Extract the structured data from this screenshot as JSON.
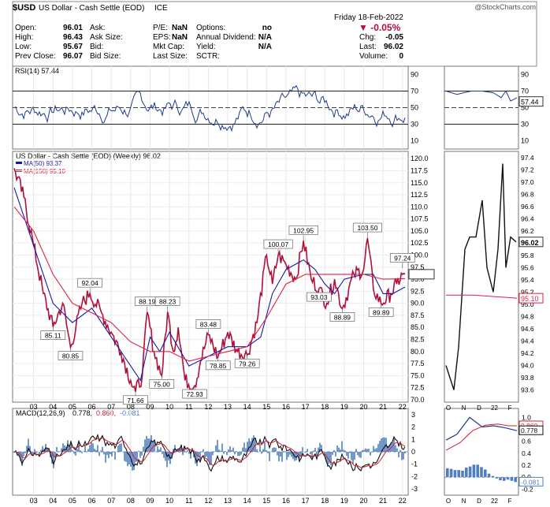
{
  "header": {
    "symbol": "$USD",
    "name": "US Dollar - Cash Settle (EOD)",
    "exchange": "ICE",
    "watermark": "@StockCharts.com",
    "date": "Friday  18-Feb-2022",
    "change_pct": "▼ -0.05%",
    "quote": [
      {
        "label": "Open:",
        "value": "96.01"
      },
      {
        "label": "High:",
        "value": "96.43"
      },
      {
        "label": "Low:",
        "value": "95.67"
      },
      {
        "label": "Prev Close:",
        "value": "96.07"
      }
    ],
    "quote2": [
      {
        "label": "Ask:",
        "value": ""
      },
      {
        "label": "Ask Size:",
        "value": ""
      },
      {
        "label": "Bid:",
        "value": ""
      },
      {
        "label": "Bid Size:",
        "value": ""
      }
    ],
    "fund": [
      {
        "label": "P/E:",
        "value": "NaN"
      },
      {
        "label": "EPS:",
        "value": "NaN"
      },
      {
        "label": "Mkt Cap:",
        "value": ""
      },
      {
        "label": "Last Size:",
        "value": ""
      }
    ],
    "div": [
      {
        "label": "Options:",
        "value": "no"
      },
      {
        "label": "Annual Dividend:",
        "value": "N/A"
      },
      {
        "label": "Yield:",
        "value": "N/A"
      },
      {
        "label": "SCTR:",
        "value": ""
      }
    ],
    "right": [
      {
        "label": "Chg:",
        "value": "-0.05"
      },
      {
        "label": "Last:",
        "value": "96.02"
      },
      {
        "label": "Volume:",
        "value": "0"
      }
    ]
  },
  "colors": {
    "price": "#b0103a",
    "ma50": "#1a1aa0",
    "ma150": "#e02040",
    "rsi": "#1f3c88",
    "macd_hist": "#4f7fc0",
    "signal": "#d02030",
    "header_red": "#b0103a"
  },
  "chart_data": [
    {
      "type": "line",
      "panel": "rsi",
      "title": "RSI(14) 57.44",
      "ylim": [
        0,
        100
      ],
      "y_ticks": [
        "90",
        "70",
        "50",
        "30",
        "10"
      ],
      "levels": [
        70,
        30
      ],
      "x_ticks": [
        "03",
        "04",
        "05",
        "06",
        "07",
        "08",
        "09",
        "10",
        "11",
        "12",
        "13",
        "14",
        "15",
        "16",
        "17",
        "18",
        "19",
        "20",
        "21",
        "22"
      ],
      "last_value": "57.44"
    },
    {
      "type": "line",
      "panel": "price",
      "title": "US Dollar - Cash Settle (EOD) (Weekly) 96.02",
      "ylim": [
        69.5,
        121.5
      ],
      "y_ticks": [
        "120.0",
        "117.5",
        "115.0",
        "112.5",
        "110.0",
        "107.5",
        "105.0",
        "102.5",
        "100.0",
        "97.5",
        "95.0",
        "92.5",
        "90.0",
        "87.5",
        "85.0",
        "82.5",
        "80.0",
        "77.5",
        "75.0",
        "72.5",
        "70.0"
      ],
      "x_ticks": [
        "03",
        "04",
        "05",
        "06",
        "07",
        "08",
        "09",
        "10",
        "11",
        "12",
        "13",
        "14",
        "15",
        "16",
        "17",
        "18",
        "19",
        "20",
        "21",
        "22"
      ],
      "series": [
        {
          "name": "US Dollar - Cash Settle (EOD) (Weekly) 96.02",
          "x": [
            2002.0,
            2002.5,
            2003.0,
            2003.5,
            2004.0,
            2004.5,
            2004.9,
            2005.5,
            2005.9,
            2006.5,
            2007.0,
            2007.5,
            2008.0,
            2008.25,
            2008.6,
            2008.85,
            2009.2,
            2009.6,
            2009.9,
            2010.2,
            2010.45,
            2010.8,
            2011.3,
            2011.6,
            2012.0,
            2012.5,
            2013.0,
            2013.5,
            2014.0,
            2014.5,
            2015.0,
            2015.3,
            2015.6,
            2016.0,
            2016.5,
            2016.9,
            2017.3,
            2017.7,
            2018.1,
            2018.5,
            2018.9,
            2019.5,
            2020.0,
            2020.2,
            2020.5,
            2020.9,
            2021.4,
            2021.7,
            2022.0,
            2022.13
          ],
          "values": [
            118,
            112,
            102,
            92,
            85.11,
            90,
            80.85,
            90,
            92.04,
            88,
            84,
            80,
            74,
            71.66,
            75,
            88.19,
            80,
            75.0,
            88.23,
            80,
            85,
            74,
            72.93,
            78,
            83.48,
            78.85,
            84,
            80,
            79.26,
            86,
            100,
            94,
            100.07,
            98,
            95,
            102.95,
            95,
            93.03,
            90,
            95,
            88.89,
            96,
            97,
            103.5,
            93,
            89.89,
            92,
            94,
            96,
            96.02
          ]
        },
        {
          "name": "MA(50) 93.37",
          "x": [
            2002.0,
            2003.0,
            2004.0,
            2005.0,
            2006.0,
            2007.0,
            2008.0,
            2008.5,
            2009.0,
            2009.5,
            2010.0,
            2011.0,
            2012.0,
            2013.0,
            2014.0,
            2014.7,
            2015.3,
            2016.0,
            2016.9,
            2017.5,
            2018.0,
            2018.5,
            2019.0,
            2020.0,
            2020.5,
            2021.0,
            2021.5,
            2022.13
          ],
          "values": [
            114,
            102,
            90,
            86,
            89,
            83,
            77,
            74,
            83,
            80,
            84,
            77,
            79,
            81,
            81,
            83,
            92,
            97,
            99,
            97,
            94,
            92,
            95,
            96,
            96,
            92,
            92,
            93.37
          ]
        },
        {
          "name": "MA(150) 95.10",
          "x": [
            2002.0,
            2003.0,
            2004.0,
            2005.0,
            2006.0,
            2007.0,
            2008.0,
            2009.0,
            2010.0,
            2011.0,
            2012.0,
            2013.0,
            2014.0,
            2015.0,
            2016.0,
            2017.0,
            2018.0,
            2019.0,
            2020.0,
            2021.0,
            2022.13
          ],
          "values": [
            110,
            105,
            96,
            90,
            88,
            86,
            82,
            80,
            80,
            78,
            79,
            80,
            81,
            87,
            94,
            96,
            96,
            96,
            96,
            95,
            95.1
          ]
        }
      ],
      "callouts": [
        {
          "label": "85.11",
          "x": 2004.0,
          "y": 85.11
        },
        {
          "label": "80.85",
          "x": 2004.9,
          "y": 80.85
        },
        {
          "label": "92.04",
          "x": 2005.9,
          "y": 92.04
        },
        {
          "label": "71.66",
          "x": 2008.25,
          "y": 71.66
        },
        {
          "label": "88.19",
          "x": 2008.85,
          "y": 88.19
        },
        {
          "label": "75.00",
          "x": 2009.6,
          "y": 75.0
        },
        {
          "label": "88.23",
          "x": 2009.9,
          "y": 88.23
        },
        {
          "label": "72.93",
          "x": 2011.3,
          "y": 72.93
        },
        {
          "label": "83.48",
          "x": 2012.0,
          "y": 83.48
        },
        {
          "label": "78.85",
          "x": 2012.5,
          "y": 78.85
        },
        {
          "label": "79.26",
          "x": 2014.0,
          "y": 79.26
        },
        {
          "label": "100.07",
          "x": 2015.6,
          "y": 100.07
        },
        {
          "label": "102.95",
          "x": 2016.9,
          "y": 102.95
        },
        {
          "label": "93.03",
          "x": 2017.7,
          "y": 93.03
        },
        {
          "label": "88.89",
          "x": 2018.9,
          "y": 88.89
        },
        {
          "label": "103.50",
          "x": 2020.2,
          "y": 103.5
        },
        {
          "label": "89.89",
          "x": 2020.9,
          "y": 89.89
        },
        {
          "label": "97.24",
          "x": 2022.0,
          "y": 97.24
        }
      ],
      "last_value": "96.02",
      "ma150_last": "95.10"
    },
    {
      "type": "line",
      "panel": "macd",
      "title": "MACD(12,26,9) 0.778, 0.860, -0.081",
      "title_parts": [
        "MACD(12,26,9)",
        "0.778,",
        "0.860,",
        "-0.081"
      ],
      "ylim": [
        -3.5,
        3.5
      ],
      "y_ticks": [
        "3",
        "2",
        "1",
        "0",
        "-1",
        "-2",
        "-3"
      ],
      "x_ticks": [
        "03",
        "04",
        "05",
        "06",
        "07",
        "08",
        "09",
        "10",
        "11",
        "12",
        "13",
        "14",
        "15",
        "16",
        "17",
        "18",
        "19",
        "20",
        "21",
        "22"
      ]
    },
    {
      "type": "line",
      "panel": "rsi-daily",
      "x_ticks": [
        "O",
        "N",
        "D",
        "22",
        "F"
      ],
      "ylim": [
        0,
        100
      ],
      "y_ticks": [
        "90",
        "70",
        "50",
        "30",
        "10"
      ],
      "levels": [
        70,
        30
      ],
      "last_value": "57.44"
    },
    {
      "type": "line",
      "panel": "price-daily",
      "ylim": [
        93.4,
        97.5
      ],
      "y_ticks": [
        "97.4",
        "97.2",
        "97.0",
        "96.8",
        "96.6",
        "96.4",
        "96.2",
        "96.0",
        "95.8",
        "95.6",
        "95.4",
        "95.2",
        "95.0",
        "94.8",
        "94.6",
        "94.4",
        "94.2",
        "94.0",
        "93.8",
        "93.6"
      ],
      "x_ticks": [
        "O",
        "N",
        "D",
        "22",
        "F"
      ],
      "last_value": "96.02",
      "ma150_last": "95.10"
    },
    {
      "type": "line",
      "panel": "macd-daily",
      "ylim": [
        -0.3,
        1.15
      ],
      "y_ticks": [
        "1.0",
        "0.8",
        "0.6",
        "0.4",
        "0.2",
        "0.0",
        "-0.2"
      ],
      "x_ticks": [
        "O",
        "N",
        "D",
        "22",
        "F"
      ],
      "value_labels": [
        "0.860",
        "0.778",
        "-0.081"
      ]
    }
  ]
}
